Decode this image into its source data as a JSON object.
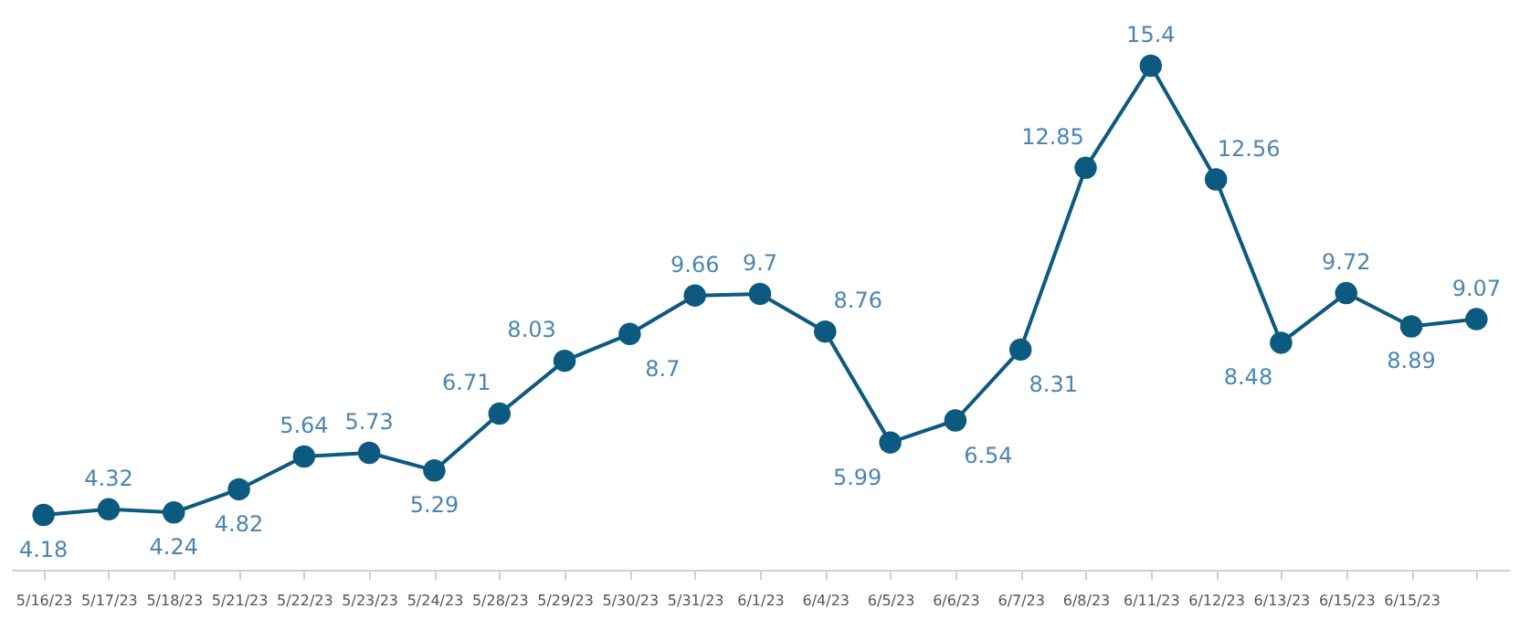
{
  "chart_data": {
    "type": "line",
    "categories": [
      "5/16/23",
      "5/17/23",
      "5/18/23",
      "5/21/23",
      "5/22/23",
      "5/23/23",
      "5/24/23",
      "5/28/23",
      "5/29/23",
      "5/30/23",
      "5/31/23",
      "6/1/23",
      "6/4/23",
      "6/5/23",
      "6/6/23",
      "6/7/23",
      "6/8/23",
      "6/11/23",
      "6/12/23",
      "6/13/23",
      "6/15/23",
      "6/15/23",
      null
    ],
    "series": [
      {
        "color": "#0d5a80",
        "values": [
          4.18,
          4.32,
          4.24,
          4.82,
          5.64,
          5.73,
          5.29,
          6.71,
          8.03,
          8.7,
          9.66,
          9.7,
          8.76,
          5.99,
          6.54,
          8.31,
          12.85,
          15.4,
          12.56,
          8.48,
          9.72,
          8.89,
          9.07
        ]
      }
    ],
    "data_labels": true,
    "marker": "circle",
    "line_style": "solid",
    "grid": false,
    "tick_labels": "x"
  }
}
